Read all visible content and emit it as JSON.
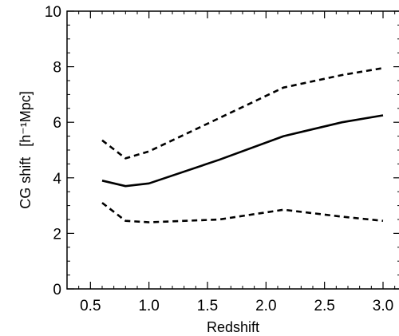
{
  "chart_data": {
    "type": "line",
    "title": "",
    "xlabel": "Redshift",
    "ylabel_main": "CG shift",
    "ylabel_unit": "[h⁻¹Mpc]",
    "xlim": [
      0.3,
      3.15
    ],
    "ylim": [
      0,
      10
    ],
    "x_ticks": [
      0.5,
      1.0,
      1.5,
      2.0,
      2.5,
      3.0
    ],
    "x_tick_labels": [
      "0.5",
      "1.0",
      "1.5",
      "2.0",
      "2.5",
      "3.0"
    ],
    "y_ticks": [
      0,
      2,
      4,
      6,
      8,
      10
    ],
    "y_tick_labels": [
      "0",
      "2",
      "4",
      "6",
      "8",
      "10"
    ],
    "grid": false,
    "series": [
      {
        "style": "solid",
        "x": [
          0.6,
          0.8,
          1.0,
          1.6,
          2.15,
          2.65,
          3.0
        ],
        "y": [
          3.9,
          3.7,
          3.8,
          4.65,
          5.5,
          6.0,
          6.25
        ]
      },
      {
        "style": "dashed",
        "x": [
          0.6,
          0.8,
          1.0,
          1.6,
          2.15,
          2.65,
          3.0
        ],
        "y": [
          5.35,
          4.7,
          4.95,
          6.15,
          7.25,
          7.7,
          7.95
        ]
      },
      {
        "style": "dashed",
        "x": [
          0.6,
          0.8,
          1.0,
          1.6,
          2.15,
          2.65,
          3.0
        ],
        "y": [
          3.1,
          2.45,
          2.4,
          2.5,
          2.85,
          2.6,
          2.45
        ]
      }
    ]
  }
}
